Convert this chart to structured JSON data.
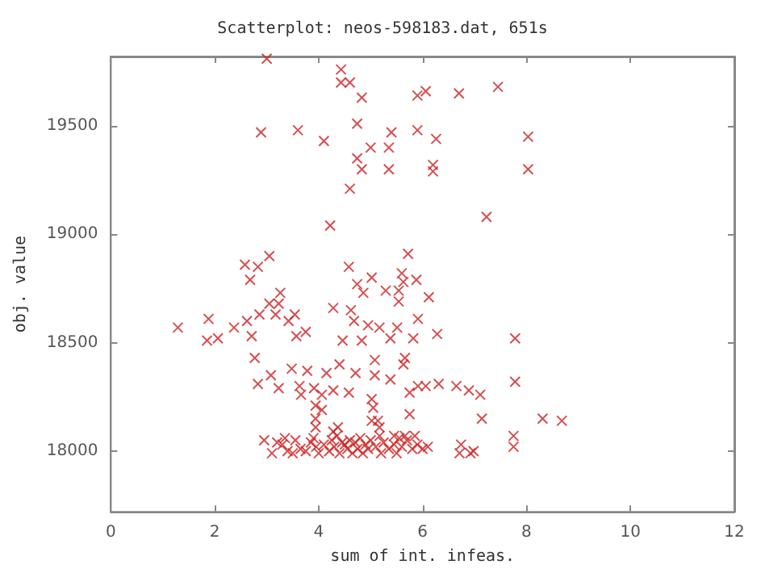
{
  "chart_data": {
    "type": "scatter",
    "title": "Scatterplot: neos-598183.dat, 651s",
    "xlabel": "sum of int. infeas.",
    "ylabel": "obj. value",
    "xlim": [
      0,
      12
    ],
    "xticks": [
      0,
      2,
      4,
      6,
      8,
      10,
      12
    ],
    "ylim": [
      17720,
      19820
    ],
    "yticks": [
      18000,
      18500,
      19000,
      19500
    ],
    "grid": false,
    "marker": "cross",
    "series": [
      {
        "color": "#cc2222",
        "x": [
          3.0,
          4.43,
          4.43,
          4.6,
          4.83,
          5.9,
          6.06,
          6.7,
          7.45,
          2.89,
          3.6,
          4.1,
          4.74,
          5.4,
          5.9,
          6.26,
          8.03,
          5.0,
          5.35,
          4.74,
          4.83,
          5.35,
          6.2,
          6.2,
          8.03,
          4.6,
          7.23,
          4.22,
          2.58,
          2.83,
          3.05,
          2.68,
          5.72,
          4.58,
          5.6,
          5.88,
          5.02,
          4.74,
          4.86,
          5.29,
          5.54,
          5.63,
          5.54,
          6.12,
          3.26,
          3.05,
          3.23,
          3.54,
          4.28,
          4.62,
          1.29,
          1.88,
          2.62,
          2.86,
          3.17,
          3.42,
          4.68,
          4.95,
          5.17,
          5.51,
          5.91,
          1.85,
          2.06,
          2.37,
          2.71,
          3.57,
          3.75,
          4.46,
          4.83,
          5.38,
          5.82,
          6.28,
          7.78,
          5.08,
          5.66,
          2.77,
          3.08,
          2.83,
          3.23,
          3.48,
          3.78,
          4.15,
          4.4,
          4.71,
          5.08,
          5.38,
          5.63,
          3.63,
          3.91,
          4.28,
          4.58,
          3.66,
          4.06,
          5.02,
          5.75,
          5.91,
          6.06,
          6.31,
          6.65,
          6.89,
          7.11,
          7.78,
          3.94,
          4.06,
          5.05,
          3.94,
          5.02,
          5.14,
          5.75,
          7.14,
          8.31,
          8.68,
          3.94,
          4.28,
          4.37,
          5.17,
          5.17,
          5.45,
          5.66,
          5.85,
          7.75,
          7.75,
          6.74,
          6.98,
          6.71,
          6.92,
          2.95,
          3.1,
          3.2,
          3.3,
          3.4,
          3.5,
          3.55,
          3.65,
          3.75,
          3.85,
          3.95,
          4.0,
          4.1,
          4.2,
          4.25,
          4.3,
          4.4,
          4.45,
          4.5,
          4.55,
          4.6,
          4.65,
          4.7,
          4.75,
          4.8,
          4.85,
          4.9,
          4.95,
          5.0,
          5.1,
          5.2,
          5.25,
          5.35,
          5.45,
          5.5,
          5.6,
          5.7,
          5.8,
          5.9,
          6.0,
          6.1,
          3.35,
          3.9,
          4.35,
          5.55
        ],
        "values": [
          19810,
          19760,
          19700,
          19700,
          19630,
          19640,
          19660,
          19650,
          19680,
          19470,
          19480,
          19430,
          19510,
          19470,
          19480,
          19440,
          19450,
          19400,
          19400,
          19350,
          19300,
          19300,
          19320,
          19290,
          19300,
          19210,
          19080,
          19040,
          18860,
          18850,
          18900,
          18790,
          18910,
          18850,
          18820,
          18790,
          18800,
          18770,
          18730,
          18740,
          18740,
          18780,
          18690,
          18710,
          18730,
          18680,
          18680,
          18630,
          18660,
          18650,
          18570,
          18610,
          18600,
          18630,
          18630,
          18600,
          18600,
          18580,
          18570,
          18570,
          18610,
          18510,
          18520,
          18570,
          18530,
          18530,
          18550,
          18510,
          18510,
          18520,
          18520,
          18540,
          18520,
          18420,
          18430,
          18430,
          18350,
          18310,
          18290,
          18380,
          18370,
          18360,
          18400,
          18360,
          18350,
          18330,
          18400,
          18300,
          18290,
          18280,
          18270,
          18260,
          18260,
          18240,
          18270,
          18300,
          18300,
          18310,
          18300,
          18280,
          18260,
          18320,
          18210,
          18190,
          18200,
          18150,
          18140,
          18140,
          18170,
          18150,
          18150,
          18140,
          18110,
          18090,
          18110,
          18110,
          18070,
          18070,
          18070,
          18070,
          18070,
          18020,
          18030,
          18000,
          17990,
          17990,
          18050,
          17990,
          18040,
          18030,
          18000,
          17990,
          18050,
          18010,
          18000,
          18040,
          18020,
          17990,
          18030,
          18000,
          18050,
          18020,
          17990,
          18040,
          18030,
          18010,
          18050,
          17990,
          18040,
          18010,
          18060,
          17990,
          18030,
          18010,
          18050,
          18020,
          17990,
          18040,
          18010,
          18030,
          17990,
          18020,
          18050,
          18010,
          18030,
          18010,
          18020,
          18060,
          18060,
          18070,
          18060
        ]
      }
    ]
  }
}
